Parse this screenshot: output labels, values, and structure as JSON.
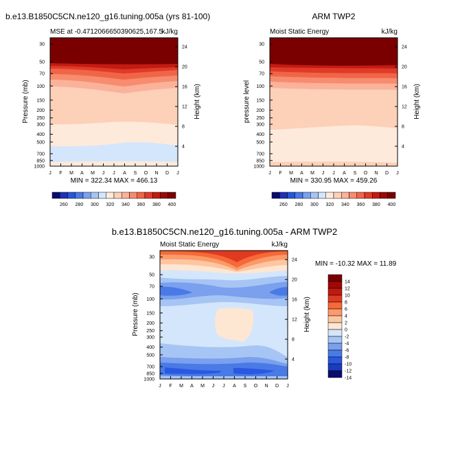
{
  "chart_data": [
    {
      "type": "contour",
      "figure_title": "b.e13.B1850C5CN.ne120_g16.tuning.005a (yrs 81-100)",
      "left_title": "MSE at -0.4712066650390625,167.5",
      "right_title": "kJ/kg",
      "ylabel": "Pressure (mb)",
      "ylabel_right": "Height (km)",
      "x_ticks": [
        "J",
        "F",
        "M",
        "A",
        "M",
        "J",
        "J",
        "A",
        "S",
        "O",
        "N",
        "D",
        "J"
      ],
      "pressure_ticks": [
        "30",
        "50",
        "70",
        "100",
        "150",
        "200",
        "250",
        "300",
        "400",
        "500",
        "700",
        "850",
        "1000"
      ],
      "height_ticks": [
        "24",
        "20",
        "16",
        "12",
        "8",
        "4"
      ],
      "minmax": "MIN = 322.34  MAX = 466.13",
      "colorbar_labels": [
        "260",
        "280",
        "300",
        "320",
        "340",
        "360",
        "380",
        "400"
      ]
    },
    {
      "type": "contour",
      "left_title": "Moist Static Energy",
      "right_title": "kJ/kg",
      "center_title": "ARM TWP2",
      "ylabel": "pressure level",
      "ylabel_right": "Height (km)",
      "x_ticks": [
        "J",
        "F",
        "M",
        "A",
        "M",
        "J",
        "J",
        "A",
        "S",
        "O",
        "N",
        "D",
        "J"
      ],
      "pressure_ticks": [
        "30",
        "50",
        "70",
        "100",
        "150",
        "200",
        "250",
        "300",
        "400",
        "500",
        "700",
        "850",
        "1000"
      ],
      "height_ticks": [
        "24",
        "20",
        "16",
        "12",
        "8",
        "4"
      ],
      "minmax": "MIN = 330.95  MAX = 459.26",
      "colorbar_labels": [
        "260",
        "280",
        "300",
        "320",
        "340",
        "360",
        "380",
        "400"
      ]
    },
    {
      "type": "contour",
      "center_title": "b.e13.B1850C5CN.ne120_g16.tuning.005a - ARM TWP2",
      "left_title": "Moist Static Energy",
      "right_title": "kJ/kg",
      "ylabel": "Pressure (mb)",
      "ylabel_right": "Height (km)",
      "x_ticks": [
        "J",
        "F",
        "M",
        "A",
        "M",
        "J",
        "J",
        "A",
        "S",
        "O",
        "N",
        "D",
        "J"
      ],
      "pressure_ticks": [
        "30",
        "50",
        "70",
        "100",
        "150",
        "200",
        "250",
        "300",
        "400",
        "500",
        "700",
        "850",
        "1000"
      ],
      "height_ticks": [
        "24",
        "20",
        "16",
        "12",
        "8",
        "4"
      ],
      "minmax": "MIN = -10.32  MAX =  11.89",
      "colorbar_labels": [
        "14",
        "12",
        "10",
        "8",
        "6",
        "4",
        "2",
        "0",
        "-2",
        "-4",
        "-6",
        "-8",
        "-10",
        "-12",
        "-14"
      ]
    }
  ],
  "colors": {
    "abs_scale": [
      "#0a0a70",
      "#1e32b4",
      "#2a55d6",
      "#4a7ae6",
      "#7aa0ee",
      "#a7c5f4",
      "#d3e6fb",
      "#feeadb",
      "#fdd0b8",
      "#fbb29a",
      "#f78c6e",
      "#f06548",
      "#e03b28",
      "#c31b12",
      "#9a0808",
      "#7a0000"
    ],
    "diff_scale": [
      "#7a0000",
      "#a00808",
      "#c01a10",
      "#e03a20",
      "#f56a38",
      "#fb9a6a",
      "#fdc6a0",
      "#fde6d2",
      "#d4e6fb",
      "#a6c5f4",
      "#7aa0ee",
      "#4a7ae6",
      "#2a58e0",
      "#1a3cc0",
      "#0a0a70"
    ]
  }
}
